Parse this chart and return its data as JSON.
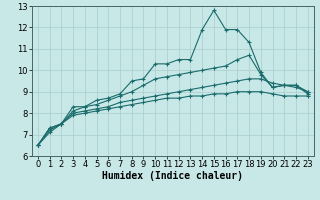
{
  "title": "",
  "xlabel": "Humidex (Indice chaleur)",
  "ylabel": "",
  "bg_color": "#c8e8e8",
  "line_color": "#1a6b6b",
  "xlim": [
    -0.5,
    23.5
  ],
  "ylim": [
    6,
    13
  ],
  "yticks": [
    6,
    7,
    8,
    9,
    10,
    11,
    12,
    13
  ],
  "xticks": [
    0,
    1,
    2,
    3,
    4,
    5,
    6,
    7,
    8,
    9,
    10,
    11,
    12,
    13,
    14,
    15,
    16,
    17,
    18,
    19,
    20,
    21,
    22,
    23
  ],
  "lines": [
    {
      "x": [
        0,
        1,
        2,
        3,
        4,
        5,
        6,
        7,
        8,
        9,
        10,
        11,
        12,
        13,
        14,
        15,
        16,
        17,
        18,
        19,
        20,
        21,
        22,
        23
      ],
      "y": [
        6.5,
        7.3,
        7.5,
        8.3,
        8.3,
        8.6,
        8.7,
        8.9,
        9.5,
        9.6,
        10.3,
        10.3,
        10.5,
        10.5,
        11.9,
        12.8,
        11.9,
        11.9,
        11.3,
        9.9,
        9.2,
        9.3,
        9.3,
        8.9
      ],
      "marker": true
    },
    {
      "x": [
        0,
        1,
        2,
        3,
        4,
        5,
        6,
        7,
        8,
        9,
        10,
        11,
        12,
        13,
        14,
        15,
        16,
        17,
        18,
        19,
        20,
        21,
        22,
        23
      ],
      "y": [
        6.5,
        7.3,
        7.5,
        8.1,
        8.3,
        8.4,
        8.6,
        8.8,
        9.0,
        9.3,
        9.6,
        9.7,
        9.8,
        9.9,
        10.0,
        10.1,
        10.2,
        10.5,
        10.7,
        9.8,
        9.2,
        9.3,
        9.3,
        9.0
      ],
      "marker": true
    },
    {
      "x": [
        0,
        1,
        2,
        3,
        4,
        5,
        6,
        7,
        8,
        9,
        10,
        11,
        12,
        13,
        14,
        15,
        16,
        17,
        18,
        19,
        20,
        21,
        22,
        23
      ],
      "y": [
        6.5,
        7.2,
        7.5,
        8.0,
        8.1,
        8.2,
        8.3,
        8.5,
        8.6,
        8.7,
        8.8,
        8.9,
        9.0,
        9.1,
        9.2,
        9.3,
        9.4,
        9.5,
        9.6,
        9.6,
        9.4,
        9.3,
        9.2,
        9.0
      ],
      "marker": true
    },
    {
      "x": [
        0,
        1,
        2,
        3,
        4,
        5,
        6,
        7,
        8,
        9,
        10,
        11,
        12,
        13,
        14,
        15,
        16,
        17,
        18,
        19,
        20,
        21,
        22,
        23
      ],
      "y": [
        6.5,
        7.1,
        7.5,
        7.9,
        8.0,
        8.1,
        8.2,
        8.3,
        8.4,
        8.5,
        8.6,
        8.7,
        8.7,
        8.8,
        8.8,
        8.9,
        8.9,
        9.0,
        9.0,
        9.0,
        8.9,
        8.8,
        8.8,
        8.8
      ],
      "marker": true
    }
  ],
  "grid_color": "#aacccc",
  "tick_font_size": 6,
  "label_font_size": 7
}
